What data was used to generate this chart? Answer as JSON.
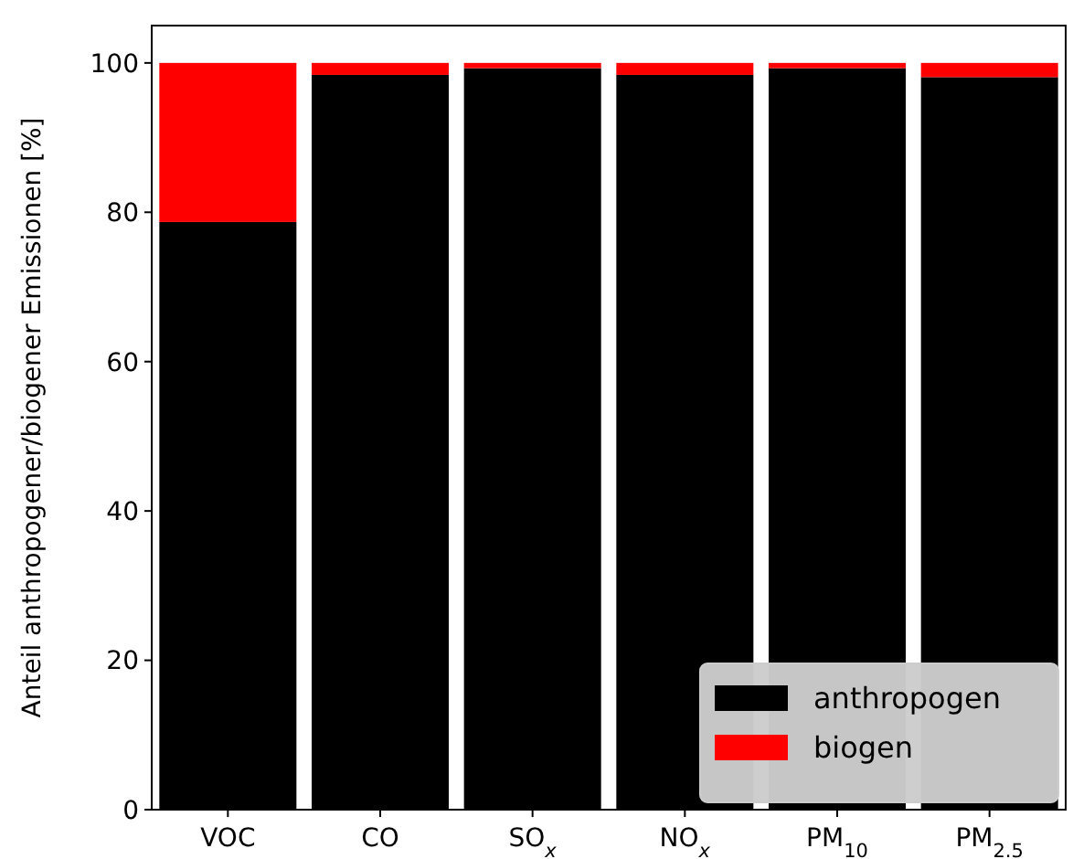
{
  "chart_data": {
    "type": "bar",
    "stacked": true,
    "ylabel": "Anteil anthropogener/biogener Emissionen [%]",
    "categories": [
      "VOC",
      "CO",
      "SO$_{x}$",
      "NO$_{x}$",
      "PM$_{10}$",
      "PM$_{2.5}$"
    ],
    "series": [
      {
        "name": "anthropogen",
        "color": "#000000",
        "values": [
          78.7,
          98.4,
          99.3,
          98.4,
          99.3,
          98.1
        ]
      },
      {
        "name": "biogen",
        "color": "#ff0000",
        "values": [
          21.3,
          1.6,
          0.7,
          1.6,
          0.7,
          1.9
        ]
      }
    ],
    "ylim": [
      0,
      105
    ],
    "yticks": [
      0,
      20,
      40,
      60,
      80,
      100
    ],
    "legend": "bottom right"
  }
}
